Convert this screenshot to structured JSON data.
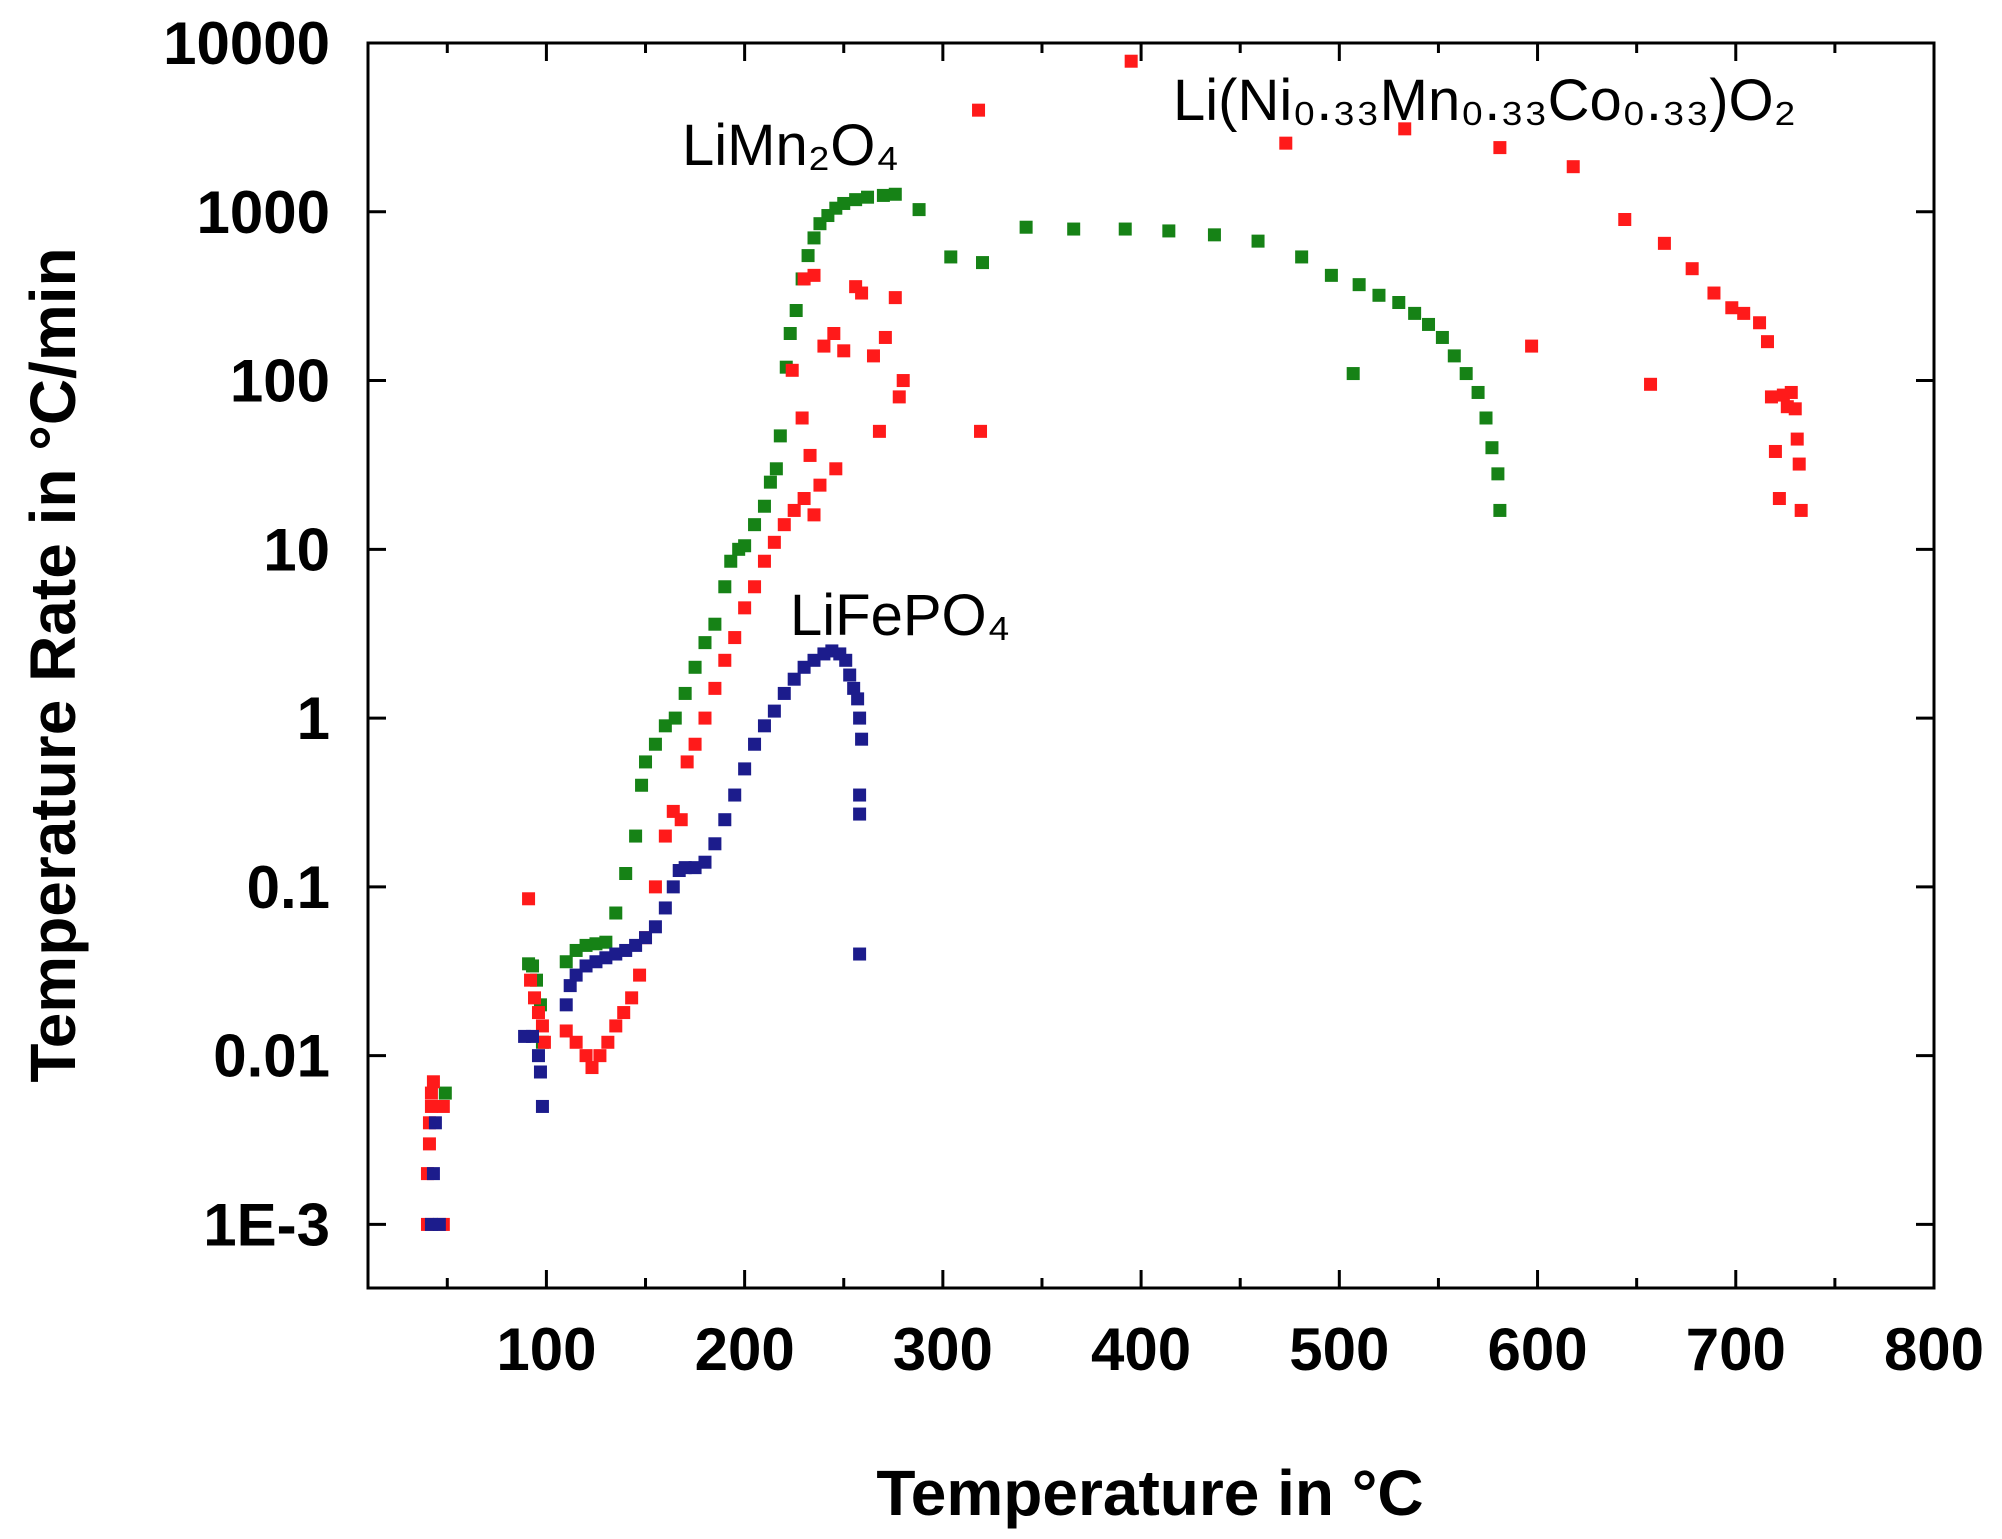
{
  "chart_data": {
    "type": "scatter",
    "xlabel": "Temperature in °C",
    "ylabel": "Temperature Rate in °C/min",
    "xlim": [
      10,
      800
    ],
    "ylim": [
      0.00042,
      10000
    ],
    "yscale": "log",
    "xticks": [
      100,
      200,
      300,
      400,
      500,
      600,
      700,
      800
    ],
    "yticks": [
      {
        "value": 0.001,
        "label": "1E-3"
      },
      {
        "value": 0.01,
        "label": "0.01"
      },
      {
        "value": 0.1,
        "label": "0.1"
      },
      {
        "value": 1,
        "label": "1"
      },
      {
        "value": 10,
        "label": "10"
      },
      {
        "value": 100,
        "label": "100"
      },
      {
        "value": 1000,
        "label": "1000"
      },
      {
        "value": 10000,
        "label": "10000"
      }
    ],
    "annotations": [
      {
        "id": "annot-limn2o4",
        "text": "LiMn₂O₄",
        "series": "LiMn2O4"
      },
      {
        "id": "annot-lifepo4",
        "text": "LiFePO₄",
        "series": "LiFePO4"
      },
      {
        "id": "annot-nmc",
        "text": "Li(Ni₀.₃₃Mn₀.₃₃Co₀.₃₃)O₂",
        "series": "Li(Ni0.33Mn0.33Co0.33)O2"
      }
    ],
    "series": [
      {
        "name": "LiMn2O4",
        "color": "#168216",
        "points": [
          [
            49,
            0.006
          ],
          [
            91,
            0.035
          ],
          [
            93,
            0.034
          ],
          [
            95,
            0.028
          ],
          [
            97,
            0.02
          ],
          [
            98,
            0.012
          ],
          [
            110,
            0.036
          ],
          [
            115,
            0.042
          ],
          [
            120,
            0.045
          ],
          [
            125,
            0.046
          ],
          [
            130,
            0.047
          ],
          [
            135,
            0.07
          ],
          [
            140,
            0.12
          ],
          [
            145,
            0.2
          ],
          [
            148,
            0.4
          ],
          [
            150,
            0.55
          ],
          [
            155,
            0.7
          ],
          [
            160,
            0.9
          ],
          [
            165,
            1.0
          ],
          [
            170,
            1.4
          ],
          [
            175,
            2.0
          ],
          [
            180,
            2.8
          ],
          [
            185,
            3.6
          ],
          [
            190,
            6.0
          ],
          [
            193,
            8.5
          ],
          [
            197,
            10.0
          ],
          [
            200,
            10.5
          ],
          [
            205,
            14
          ],
          [
            210,
            18
          ],
          [
            213,
            25
          ],
          [
            216,
            30
          ],
          [
            218,
            47
          ],
          [
            221,
            120
          ],
          [
            223,
            190
          ],
          [
            226,
            260
          ],
          [
            229,
            400
          ],
          [
            232,
            550
          ],
          [
            235,
            700
          ],
          [
            238,
            850
          ],
          [
            242,
            950
          ],
          [
            246,
            1050
          ],
          [
            250,
            1120
          ],
          [
            256,
            1180
          ],
          [
            262,
            1220
          ],
          [
            270,
            1250
          ],
          [
            276,
            1270
          ],
          [
            288,
            1030
          ],
          [
            304,
            540
          ],
          [
            320,
            500
          ],
          [
            342,
            810
          ],
          [
            366,
            790
          ],
          [
            392,
            790
          ],
          [
            414,
            770
          ],
          [
            437,
            730
          ],
          [
            459,
            670
          ],
          [
            481,
            540
          ],
          [
            496,
            420
          ],
          [
            510,
            370
          ],
          [
            520,
            320
          ],
          [
            530,
            290
          ],
          [
            538,
            250
          ],
          [
            545,
            215
          ],
          [
            552,
            180
          ],
          [
            558,
            140
          ],
          [
            564,
            110
          ],
          [
            570,
            85
          ],
          [
            574,
            60
          ],
          [
            577,
            40
          ],
          [
            580,
            28
          ],
          [
            581,
            17
          ],
          [
            507,
            110
          ]
        ]
      },
      {
        "name": "Li(Ni0.33Mn0.33Co0.33)O2",
        "color": "#ff1a1a",
        "points": [
          [
            40,
            0.001
          ],
          [
            40,
            0.002
          ],
          [
            41,
            0.003
          ],
          [
            41,
            0.004
          ],
          [
            42,
            0.005
          ],
          [
            42,
            0.006
          ],
          [
            43,
            0.007
          ],
          [
            48,
            0.001
          ],
          [
            48,
            0.005
          ],
          [
            91,
            0.085
          ],
          [
            92,
            0.028
          ],
          [
            94,
            0.022
          ],
          [
            96,
            0.018
          ],
          [
            98,
            0.015
          ],
          [
            99,
            0.012
          ],
          [
            110,
            0.014
          ],
          [
            115,
            0.012
          ],
          [
            120,
            0.01
          ],
          [
            123,
            0.0085
          ],
          [
            127,
            0.01
          ],
          [
            131,
            0.012
          ],
          [
            135,
            0.015
          ],
          [
            139,
            0.018
          ],
          [
            143,
            0.022
          ],
          [
            147,
            0.03
          ],
          [
            150,
            0.05
          ],
          [
            155,
            0.1
          ],
          [
            160,
            0.2
          ],
          [
            164,
            0.28
          ],
          [
            168,
            0.25
          ],
          [
            171,
            0.55
          ],
          [
            175,
            0.7
          ],
          [
            180,
            1.0
          ],
          [
            185,
            1.5
          ],
          [
            190,
            2.2
          ],
          [
            195,
            3.0
          ],
          [
            200,
            4.5
          ],
          [
            205,
            6.0
          ],
          [
            210,
            8.5
          ],
          [
            215,
            11
          ],
          [
            220,
            14
          ],
          [
            225,
            17
          ],
          [
            230,
            20
          ],
          [
            235,
            16
          ],
          [
            229,
            60
          ],
          [
            233,
            36
          ],
          [
            238,
            24
          ],
          [
            246,
            30
          ],
          [
            224,
            115
          ],
          [
            230,
            400
          ],
          [
            235,
            420
          ],
          [
            240,
            160
          ],
          [
            245,
            190
          ],
          [
            250,
            150
          ],
          [
            256,
            360
          ],
          [
            259,
            330
          ],
          [
            265,
            140
          ],
          [
            268,
            50
          ],
          [
            271,
            180
          ],
          [
            276,
            310
          ],
          [
            278,
            80
          ],
          [
            280,
            100
          ],
          [
            318,
            4000
          ],
          [
            319,
            50
          ],
          [
            395,
            7800
          ],
          [
            473,
            2550
          ],
          [
            533,
            3100
          ],
          [
            581,
            2400
          ],
          [
            597,
            160
          ],
          [
            618,
            1850
          ],
          [
            644,
            900
          ],
          [
            657,
            95
          ],
          [
            664,
            650
          ],
          [
            678,
            460
          ],
          [
            689,
            330
          ],
          [
            698,
            270
          ],
          [
            704,
            250
          ],
          [
            712,
            220
          ],
          [
            716,
            170
          ],
          [
            718,
            80
          ],
          [
            720,
            38
          ],
          [
            722,
            20
          ],
          [
            724,
            82
          ],
          [
            726,
            70
          ],
          [
            728,
            85
          ],
          [
            730,
            68
          ],
          [
            731,
            45
          ],
          [
            732,
            32
          ],
          [
            733,
            17
          ]
        ]
      },
      {
        "name": "LiFePO4",
        "color": "#1c1c8c",
        "points": [
          [
            42,
            0.001
          ],
          [
            43,
            0.002
          ],
          [
            44,
            0.004
          ],
          [
            46,
            0.001
          ],
          [
            89,
            0.013
          ],
          [
            93,
            0.013
          ],
          [
            96,
            0.01
          ],
          [
            97,
            0.008
          ],
          [
            98,
            0.005
          ],
          [
            110,
            0.02
          ],
          [
            112,
            0.026
          ],
          [
            115,
            0.03
          ],
          [
            120,
            0.034
          ],
          [
            125,
            0.036
          ],
          [
            130,
            0.038
          ],
          [
            135,
            0.04
          ],
          [
            140,
            0.042
          ],
          [
            145,
            0.045
          ],
          [
            150,
            0.05
          ],
          [
            155,
            0.058
          ],
          [
            160,
            0.075
          ],
          [
            164,
            0.1
          ],
          [
            167,
            0.125
          ],
          [
            170,
            0.13
          ],
          [
            175,
            0.13
          ],
          [
            180,
            0.14
          ],
          [
            185,
            0.18
          ],
          [
            190,
            0.25
          ],
          [
            195,
            0.35
          ],
          [
            200,
            0.5
          ],
          [
            205,
            0.7
          ],
          [
            210,
            0.9
          ],
          [
            215,
            1.1
          ],
          [
            220,
            1.4
          ],
          [
            225,
            1.7
          ],
          [
            230,
            2.0
          ],
          [
            235,
            2.2
          ],
          [
            240,
            2.4
          ],
          [
            244,
            2.5
          ],
          [
            248,
            2.4
          ],
          [
            251,
            2.2
          ],
          [
            253,
            1.8
          ],
          [
            255,
            1.5
          ],
          [
            257,
            1.3
          ],
          [
            258,
            1.0
          ],
          [
            259,
            0.75
          ],
          [
            258,
            0.35
          ],
          [
            258,
            0.27
          ],
          [
            258,
            0.04
          ]
        ]
      }
    ]
  }
}
